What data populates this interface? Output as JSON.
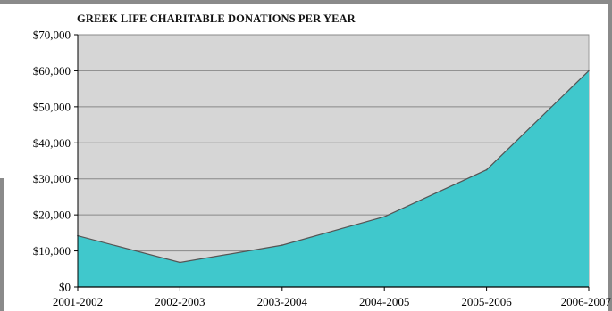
{
  "chart_data": {
    "type": "area",
    "title": "GREEK LIFE CHARITABLE DONATIONS PER YEAR",
    "xlabel": "",
    "ylabel": "",
    "categories": [
      "2001-2002",
      "2002-2003",
      "2003-2004",
      "2004-2005",
      "2005-2006",
      "2006-2007"
    ],
    "values": [
      14200,
      6800,
      11600,
      19500,
      32500,
      60000
    ],
    "ylim": [
      0,
      70000
    ],
    "yticks": [
      0,
      10000,
      20000,
      30000,
      40000,
      50000,
      60000,
      70000
    ],
    "ytick_labels": [
      "$0",
      "$10,000",
      "$20,000",
      "$30,000",
      "$40,000",
      "$50,000",
      "$60,000",
      "$70,000"
    ],
    "grid": true,
    "colors": {
      "area_fill": "#40c8cc",
      "area_stroke": "#555555",
      "plot_background": "#d6d6d6",
      "gridline": "#888888"
    }
  }
}
